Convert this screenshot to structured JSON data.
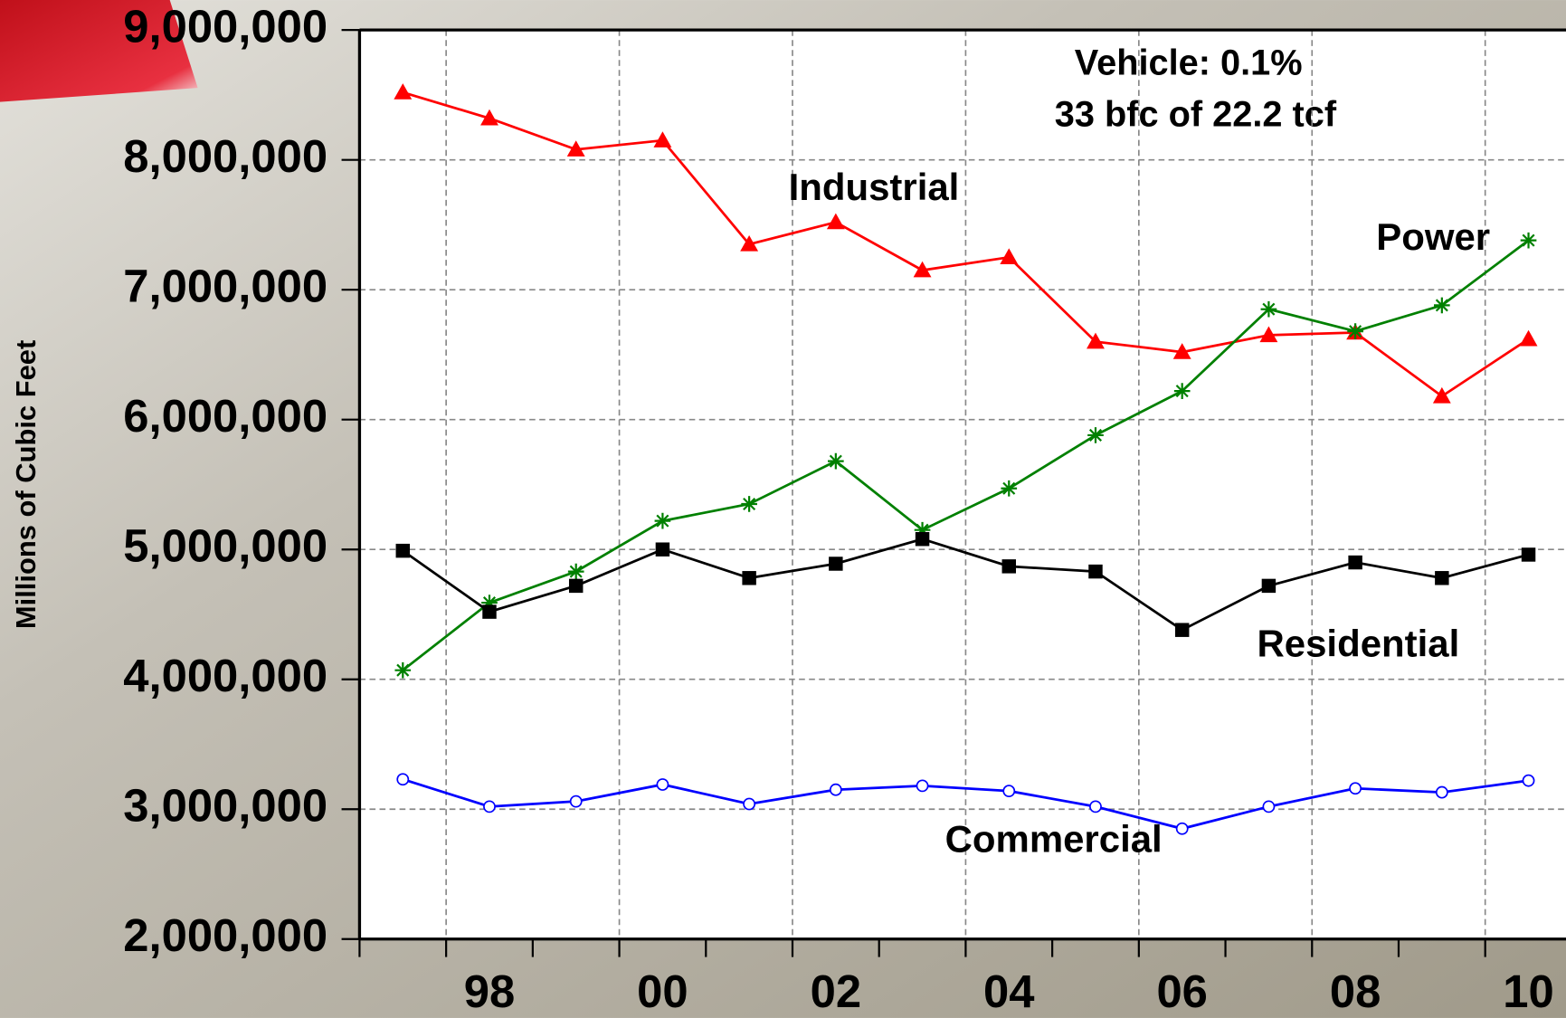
{
  "chart_data": {
    "type": "line",
    "y_label": "Millions of Cubic Feet",
    "annotations": [
      "Vehicle: 0.1%",
      "33 bfc of 22.2 tcf"
    ],
    "categories": [
      null,
      "98",
      null,
      "00",
      null,
      "02",
      null,
      "04",
      null,
      "06",
      null,
      "08",
      null,
      "10"
    ],
    "series": [
      {
        "name": "Industrial",
        "color": "#ff0000",
        "marker": "triangle",
        "values": [
          8520000,
          8320000,
          8080000,
          8150000,
          7350000,
          7520000,
          7150000,
          7250000,
          6600000,
          6520000,
          6650000,
          6670000,
          6180000,
          6620000
        ]
      },
      {
        "name": "Power",
        "color": "#008000",
        "marker": "asterisk",
        "values": [
          4070000,
          4590000,
          4830000,
          5220000,
          5350000,
          5680000,
          5150000,
          5470000,
          5880000,
          6220000,
          6850000,
          6680000,
          6880000,
          7380000
        ]
      },
      {
        "name": "Residential",
        "color": "#000000",
        "marker": "square",
        "values": [
          4990000,
          4520000,
          4720000,
          5000000,
          4780000,
          4890000,
          5080000,
          4870000,
          4830000,
          4380000,
          4720000,
          4900000,
          4780000,
          4960000
        ]
      },
      {
        "name": "Commercial",
        "color": "#0000ff",
        "marker": "circle",
        "values": [
          3230000,
          3020000,
          3060000,
          3190000,
          3040000,
          3150000,
          3180000,
          3140000,
          3020000,
          2850000,
          3020000,
          3160000,
          3130000,
          3220000
        ]
      }
    ],
    "ylim": [
      2000000,
      9000000
    ],
    "yticks": [
      {
        "value": 2000000,
        "label": "2,000,000"
      },
      {
        "value": 3000000,
        "label": "3,000,000"
      },
      {
        "value": 4000000,
        "label": "4,000,000"
      },
      {
        "value": 5000000,
        "label": "5,000,000"
      },
      {
        "value": 6000000,
        "label": "6,000,000"
      },
      {
        "value": 7000000,
        "label": "7,000,000"
      },
      {
        "value": 8000000,
        "label": "8,000,000"
      },
      {
        "value": 9000000,
        "label": "9,000,000"
      }
    ],
    "grid": true
  }
}
